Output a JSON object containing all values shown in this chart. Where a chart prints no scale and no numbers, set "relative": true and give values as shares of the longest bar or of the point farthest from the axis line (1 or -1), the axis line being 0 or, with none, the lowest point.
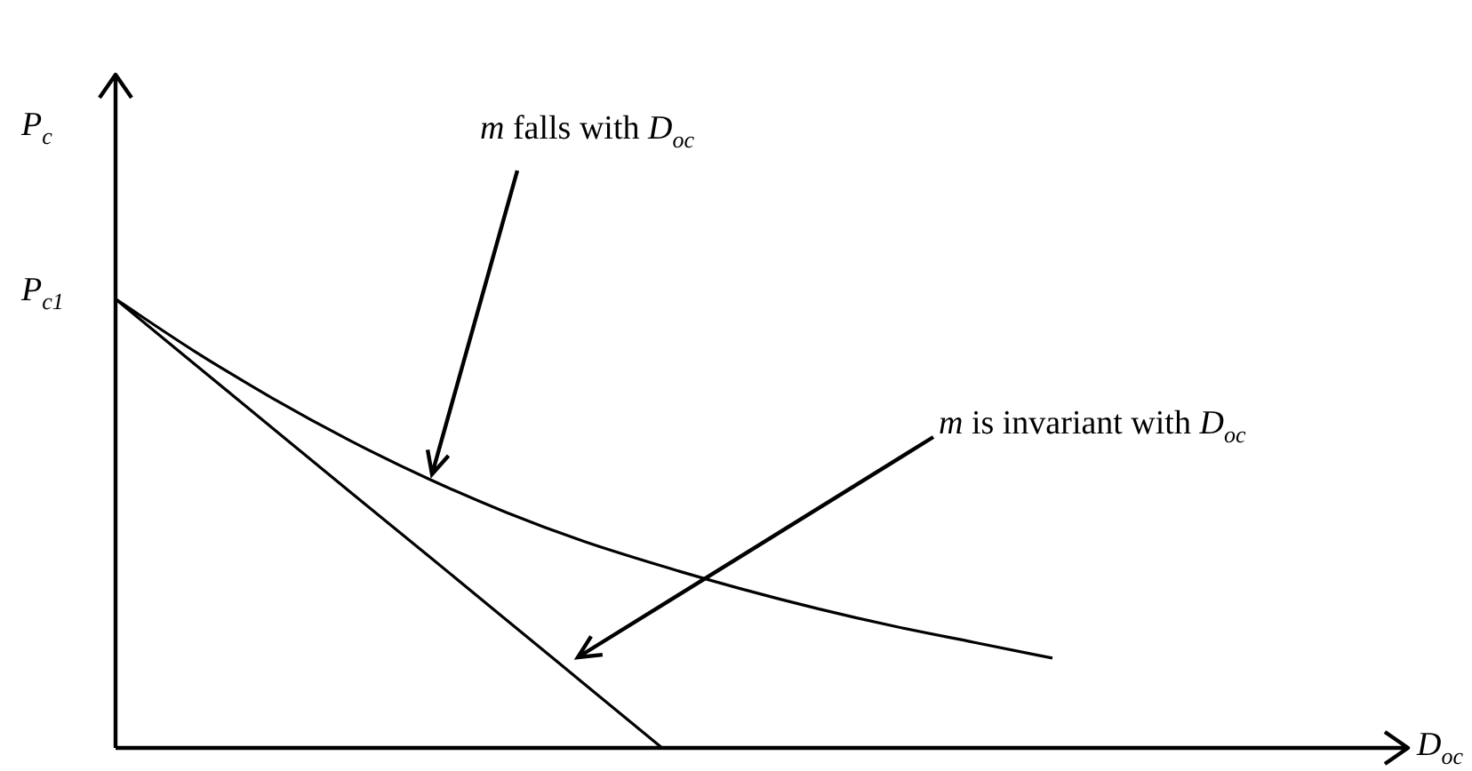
{
  "chart_data": {
    "type": "line",
    "relative": true,
    "ylabel": "P$_{c}$",
    "categories": [
      null,
      null,
      null,
      null,
      null,
      null,
      null,
      null,
      null,
      null,
      null,
      null,
      null
    ],
    "series": [
      {
        "color": "#000000",
        "values": [
          1,
          0.885,
          0.78,
          0.685,
          0.6,
          0.525,
          0.46,
          0.405,
          0.355,
          0.31,
          0.27,
          0.235,
          0.2
        ]
      },
      {
        "color": "#000000",
        "values": [
          1,
          0.857,
          0.714,
          0.571,
          0.429,
          0.286,
          0.143,
          0,
          null,
          null,
          null,
          null,
          null
        ]
      }
    ],
    "annotations": [
      "P$_{c1}$",
      "m falls with D$_{oc}$",
      "m is invariant with D$_{oc}$",
      "D$_{oc}$"
    ],
    "grid": false,
    "legend": false,
    "marker": "none",
    "line_style": "solid"
  }
}
